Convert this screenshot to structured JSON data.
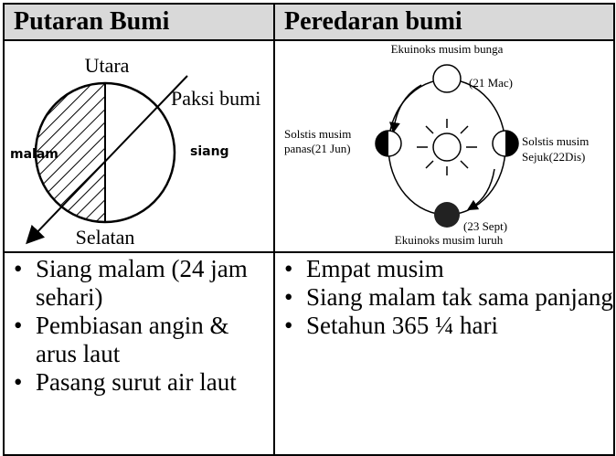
{
  "table": {
    "headers": [
      "Putaran Bumi",
      "Peredaran bumi"
    ],
    "diagram_left": {
      "north": "Utara",
      "axis": "Paksi bumi",
      "night": "malam",
      "day": "siang",
      "south": "Selatan"
    },
    "diagram_right": {
      "top_label": "Ekuinoks musim bunga",
      "top_date": "(21 Mac)",
      "left_label": "Solstis musim",
      "left_date": "panas(21 Jun)",
      "right_label": "Solstis musim",
      "right_date": "Sejuk(22Dis)",
      "bottom_date": "(23 Sept)",
      "bottom_label": "Ekuinoks musim luruh"
    },
    "bullets": [
      [
        "Siang malam (24 jam sehari)",
        "Pembiasan angin & arus laut",
        "Pasang surut air laut"
      ],
      [
        "Empat musim",
        "Siang malam tak sama panjang",
        "Setahun 365 ¼ hari"
      ]
    ]
  }
}
